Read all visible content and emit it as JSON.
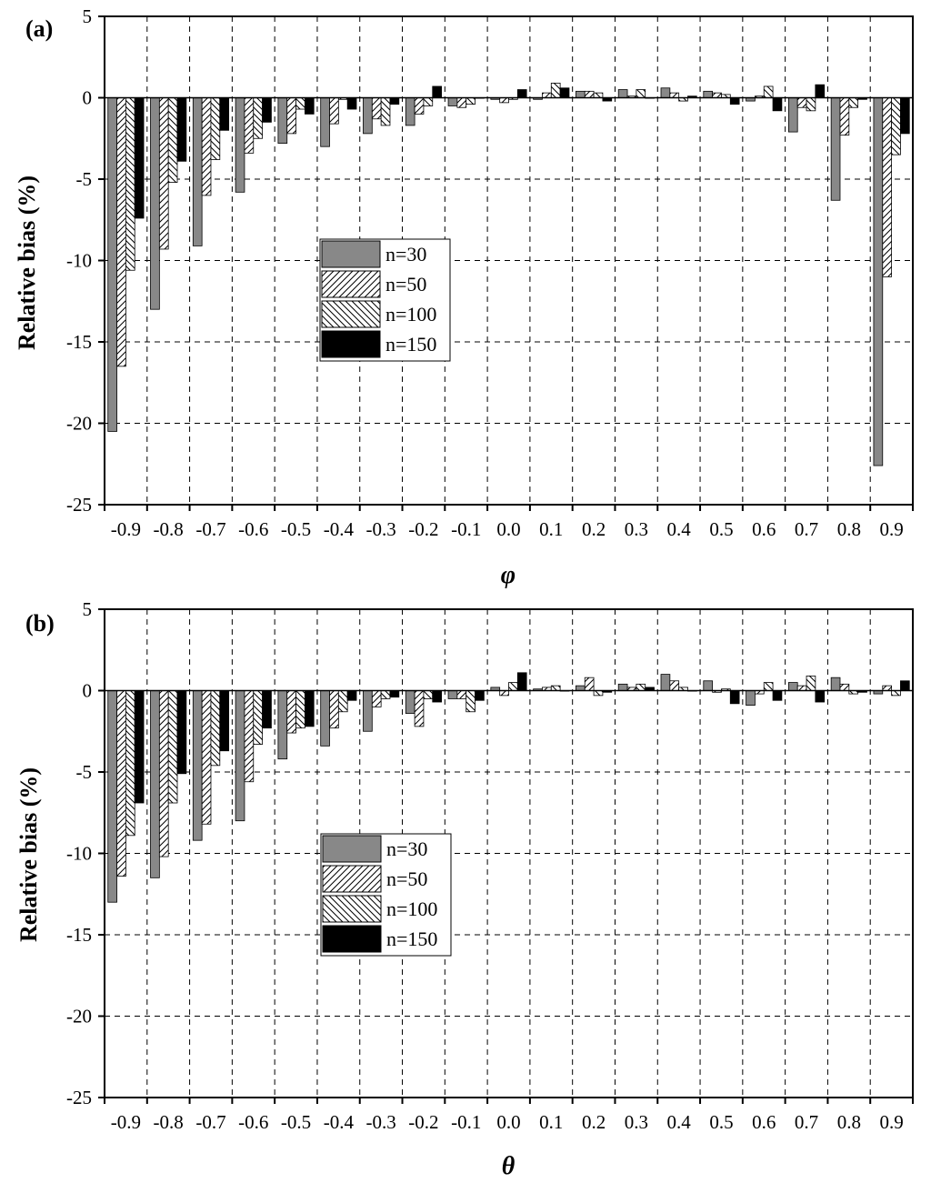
{
  "chart_data": [
    {
      "type": "bar",
      "panel_label": "(a)",
      "xlabel": "φ",
      "ylabel": "Relative bias (%)",
      "ylim": [
        -25,
        5
      ],
      "yticks": [
        5,
        0,
        -5,
        -10,
        -15,
        -20,
        -25
      ],
      "grid": true,
      "legend_position": "center-left",
      "categories": [
        "-0.9",
        "-0.8",
        "-0.7",
        "-0.6",
        "-0.5",
        "-0.4",
        "-0.3",
        "-0.2",
        "-0.1",
        "0.0",
        "0.1",
        "0.2",
        "0.3",
        "0.4",
        "0.5",
        "0.6",
        "0.7",
        "0.8",
        "0.9"
      ],
      "series": [
        {
          "name": "n=30",
          "values": [
            -20.5,
            -13.0,
            -9.1,
            -5.8,
            -2.8,
            -3.0,
            -2.2,
            -1.7,
            -0.5,
            -0.1,
            -0.1,
            0.4,
            0.5,
            0.6,
            0.4,
            -0.2,
            -2.1,
            -6.3,
            -22.6
          ]
        },
        {
          "name": "n=50",
          "values": [
            -16.5,
            -9.3,
            -6.0,
            -3.4,
            -2.2,
            -1.6,
            -1.3,
            -1.0,
            -0.6,
            -0.3,
            0.3,
            0.4,
            0.1,
            0.3,
            0.3,
            0.1,
            -0.6,
            -2.3,
            -11.0
          ]
        },
        {
          "name": "n=100",
          "values": [
            -10.6,
            -5.2,
            -3.8,
            -2.5,
            -0.7,
            -0.1,
            -1.7,
            -0.5,
            -0.4,
            -0.1,
            0.9,
            0.3,
            0.5,
            -0.2,
            0.2,
            0.7,
            -0.8,
            -0.6,
            -3.5
          ]
        },
        {
          "name": "n=150",
          "values": [
            -7.4,
            -3.9,
            -2.0,
            -1.5,
            -1.0,
            -0.7,
            -0.4,
            0.7,
            0.0,
            0.5,
            0.6,
            -0.2,
            0.0,
            0.1,
            -0.4,
            -0.8,
            0.8,
            -0.1,
            -2.2
          ]
        }
      ]
    },
    {
      "type": "bar",
      "panel_label": "(b)",
      "xlabel": "θ",
      "ylabel": "Relative bias (%)",
      "ylim": [
        -25,
        5
      ],
      "yticks": [
        5,
        0,
        -5,
        -10,
        -15,
        -20,
        -25
      ],
      "grid": true,
      "legend_position": "center-left",
      "categories": [
        "-0.9",
        "-0.8",
        "-0.7",
        "-0.6",
        "-0.5",
        "-0.4",
        "-0.3",
        "-0.2",
        "-0.1",
        "0.0",
        "0.1",
        "0.2",
        "0.3",
        "0.4",
        "0.5",
        "0.6",
        "0.7",
        "0.8",
        "0.9"
      ],
      "series": [
        {
          "name": "n=30",
          "values": [
            -13.0,
            -11.5,
            -9.2,
            -8.0,
            -4.2,
            -3.4,
            -2.5,
            -1.4,
            -0.5,
            0.2,
            0.1,
            0.3,
            0.4,
            1.0,
            0.6,
            -0.9,
            0.5,
            0.8,
            -0.2
          ]
        },
        {
          "name": "n=50",
          "values": [
            -11.4,
            -10.2,
            -8.2,
            -5.6,
            -2.6,
            -2.3,
            -1.0,
            -2.2,
            -0.5,
            -0.3,
            0.2,
            0.8,
            0.2,
            0.6,
            -0.1,
            -0.2,
            0.3,
            0.4,
            0.3
          ]
        },
        {
          "name": "n=100",
          "values": [
            -8.9,
            -6.9,
            -4.6,
            -3.3,
            -2.3,
            -1.3,
            -0.5,
            -0.5,
            -1.3,
            0.5,
            0.3,
            -0.3,
            0.4,
            0.2,
            0.1,
            0.5,
            0.9,
            -0.2,
            -0.3
          ]
        },
        {
          "name": "n=150",
          "values": [
            -6.9,
            -5.1,
            -3.7,
            -2.3,
            -2.2,
            -0.6,
            -0.4,
            -0.7,
            -0.6,
            1.1,
            0.0,
            -0.1,
            0.2,
            0.0,
            -0.8,
            -0.6,
            -0.7,
            -0.1,
            0.6
          ]
        }
      ]
    }
  ]
}
